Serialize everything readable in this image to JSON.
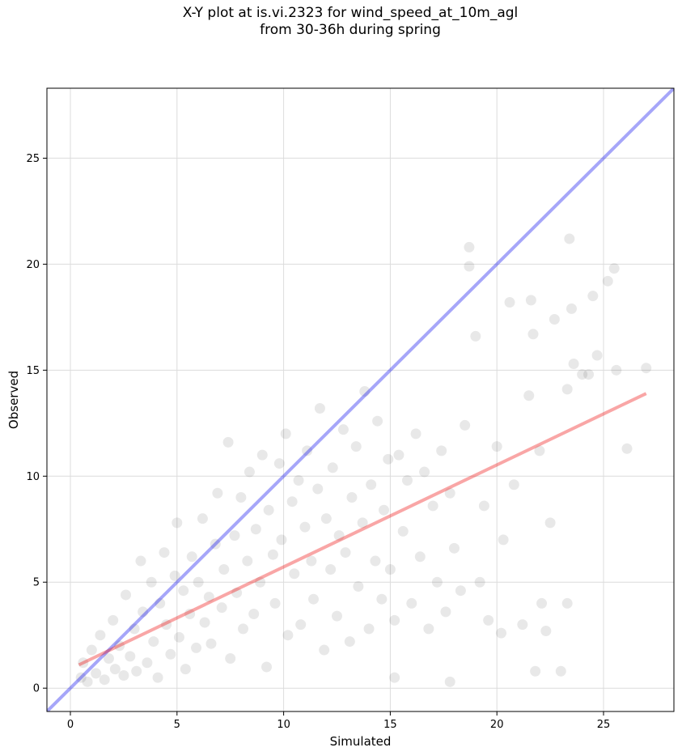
{
  "chart_data": {
    "type": "scatter",
    "title_line1": "X-Y plot at is.vi.2323 for wind_speed_at_10m_agl",
    "title_line2": "from 30-36h during spring",
    "xlabel": "Simulated",
    "ylabel": "Observed",
    "xlim": [
      -1.1,
      28.3
    ],
    "ylim": [
      -1.1,
      28.3
    ],
    "xticks": [
      0,
      5,
      10,
      15,
      20,
      25
    ],
    "yticks": [
      0,
      5,
      10,
      15,
      20,
      25
    ],
    "xtick_labels": [
      "0",
      "5",
      "10",
      "15",
      "20",
      "25"
    ],
    "ytick_labels": [
      "0",
      "5",
      "10",
      "15",
      "20",
      "25"
    ],
    "grid": true,
    "point_color": "#000000",
    "point_opacity": 0.09,
    "identity_line": {
      "x": [
        -1.1,
        28.3
      ],
      "y": [
        -1.1,
        28.3
      ],
      "color": "#0000ee"
    },
    "regression_line": {
      "x": [
        0.4,
        27.0
      ],
      "y": [
        1.1,
        13.9
      ],
      "color": "#ee0000"
    },
    "points": [
      [
        0.5,
        0.5
      ],
      [
        0.6,
        1.2
      ],
      [
        0.8,
        0.3
      ],
      [
        1.0,
        1.8
      ],
      [
        1.2,
        0.7
      ],
      [
        1.4,
        2.5
      ],
      [
        1.6,
        0.4
      ],
      [
        1.8,
        1.4
      ],
      [
        2.0,
        3.2
      ],
      [
        2.1,
        0.9
      ],
      [
        2.3,
        2.0
      ],
      [
        2.5,
        0.6
      ],
      [
        2.6,
        4.4
      ],
      [
        2.8,
        1.5
      ],
      [
        3.0,
        2.8
      ],
      [
        3.1,
        0.8
      ],
      [
        3.3,
        6.0
      ],
      [
        3.4,
        3.6
      ],
      [
        3.6,
        1.2
      ],
      [
        3.8,
        5.0
      ],
      [
        3.9,
        2.2
      ],
      [
        4.1,
        0.5
      ],
      [
        4.2,
        4.0
      ],
      [
        4.4,
        6.4
      ],
      [
        4.5,
        3.0
      ],
      [
        4.7,
        1.6
      ],
      [
        4.9,
        5.3
      ],
      [
        5.0,
        7.8
      ],
      [
        5.1,
        2.4
      ],
      [
        5.3,
        4.6
      ],
      [
        5.4,
        0.9
      ],
      [
        5.6,
        3.5
      ],
      [
        5.7,
        6.2
      ],
      [
        5.9,
        1.9
      ],
      [
        6.0,
        5.0
      ],
      [
        6.2,
        8.0
      ],
      [
        6.3,
        3.1
      ],
      [
        6.5,
        4.3
      ],
      [
        6.6,
        2.1
      ],
      [
        6.8,
        6.8
      ],
      [
        6.9,
        9.2
      ],
      [
        7.1,
        3.8
      ],
      [
        7.2,
        5.6
      ],
      [
        7.4,
        11.6
      ],
      [
        7.5,
        1.4
      ],
      [
        7.7,
        7.2
      ],
      [
        7.8,
        4.5
      ],
      [
        8.0,
        9.0
      ],
      [
        8.1,
        2.8
      ],
      [
        8.3,
        6.0
      ],
      [
        8.4,
        10.2
      ],
      [
        8.6,
        3.5
      ],
      [
        8.7,
        7.5
      ],
      [
        8.9,
        5.0
      ],
      [
        9.0,
        11.0
      ],
      [
        9.2,
        1.0
      ],
      [
        9.3,
        8.4
      ],
      [
        9.5,
        6.3
      ],
      [
        9.6,
        4.0
      ],
      [
        9.8,
        10.6
      ],
      [
        9.9,
        7.0
      ],
      [
        10.1,
        12.0
      ],
      [
        10.2,
        2.5
      ],
      [
        10.4,
        8.8
      ],
      [
        10.5,
        5.4
      ],
      [
        10.7,
        9.8
      ],
      [
        10.8,
        3.0
      ],
      [
        11.0,
        7.6
      ],
      [
        11.1,
        11.2
      ],
      [
        11.3,
        6.0
      ],
      [
        11.4,
        4.2
      ],
      [
        11.6,
        9.4
      ],
      [
        11.7,
        13.2
      ],
      [
        11.9,
        1.8
      ],
      [
        12.0,
        8.0
      ],
      [
        12.2,
        5.6
      ],
      [
        12.3,
        10.4
      ],
      [
        12.5,
        3.4
      ],
      [
        12.6,
        7.2
      ],
      [
        12.8,
        12.2
      ],
      [
        12.9,
        6.4
      ],
      [
        13.1,
        2.2
      ],
      [
        13.2,
        9.0
      ],
      [
        13.4,
        11.4
      ],
      [
        13.5,
        4.8
      ],
      [
        13.7,
        7.8
      ],
      [
        13.8,
        14.0
      ],
      [
        14.0,
        2.8
      ],
      [
        14.1,
        9.6
      ],
      [
        14.3,
        6.0
      ],
      [
        14.4,
        12.6
      ],
      [
        14.6,
        4.2
      ],
      [
        14.7,
        8.4
      ],
      [
        14.9,
        10.8
      ],
      [
        15.0,
        5.6
      ],
      [
        15.2,
        3.2
      ],
      [
        15.4,
        11.0
      ],
      [
        15.6,
        7.4
      ],
      [
        15.8,
        9.8
      ],
      [
        16.0,
        4.0
      ],
      [
        16.2,
        12.0
      ],
      [
        16.4,
        6.2
      ],
      [
        16.6,
        10.2
      ],
      [
        16.8,
        2.8
      ],
      [
        17.0,
        8.6
      ],
      [
        17.2,
        5.0
      ],
      [
        17.4,
        11.2
      ],
      [
        17.6,
        3.6
      ],
      [
        17.8,
        9.2
      ],
      [
        18.0,
        6.6
      ],
      [
        18.3,
        4.6
      ],
      [
        18.5,
        12.4
      ],
      [
        18.7,
        20.8
      ],
      [
        18.7,
        19.9
      ],
      [
        19.0,
        16.6
      ],
      [
        19.2,
        5.0
      ],
      [
        19.4,
        8.6
      ],
      [
        19.6,
        3.2
      ],
      [
        20.0,
        11.4
      ],
      [
        20.3,
        7.0
      ],
      [
        20.6,
        18.2
      ],
      [
        20.8,
        9.6
      ],
      [
        21.2,
        3.0
      ],
      [
        21.5,
        13.8
      ],
      [
        21.6,
        18.3
      ],
      [
        21.7,
        16.7
      ],
      [
        21.8,
        0.8
      ],
      [
        22.0,
        11.2
      ],
      [
        22.3,
        2.7
      ],
      [
        22.5,
        7.8
      ],
      [
        22.7,
        17.4
      ],
      [
        23.0,
        0.8
      ],
      [
        23.3,
        4.0
      ],
      [
        23.4,
        21.2
      ],
      [
        23.5,
        17.9
      ],
      [
        23.6,
        15.3
      ],
      [
        24.0,
        14.8
      ],
      [
        24.3,
        14.8
      ],
      [
        24.5,
        18.5
      ],
      [
        24.7,
        15.7
      ],
      [
        25.2,
        19.2
      ],
      [
        25.5,
        19.8
      ],
      [
        25.6,
        15.0
      ],
      [
        26.1,
        11.3
      ],
      [
        27.0,
        15.1
      ],
      [
        23.3,
        14.1
      ],
      [
        22.1,
        4.0
      ],
      [
        20.2,
        2.6
      ],
      [
        17.8,
        0.3
      ],
      [
        15.2,
        0.5
      ]
    ]
  }
}
